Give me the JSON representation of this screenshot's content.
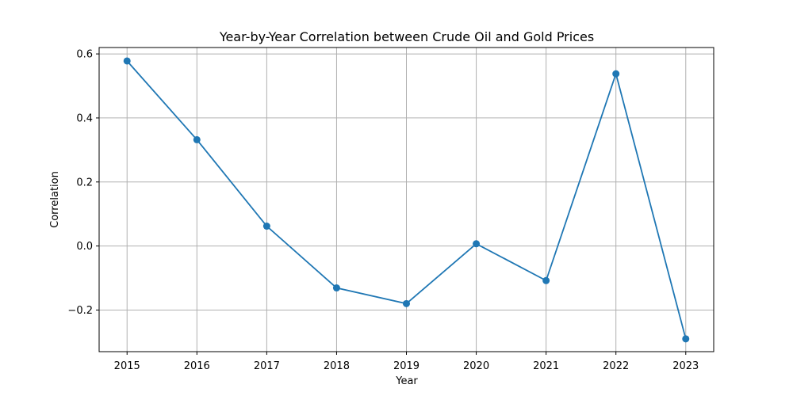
{
  "chart_data": {
    "type": "line",
    "title": "Year-by-Year Correlation between Crude Oil and Gold Prices",
    "xlabel": "Year",
    "ylabel": "Correlation",
    "x": [
      2015,
      2016,
      2017,
      2018,
      2019,
      2020,
      2021,
      2022,
      2023
    ],
    "series": [
      {
        "values": [
          0.578,
          0.332,
          0.062,
          -0.131,
          -0.18,
          0.007,
          -0.108,
          0.538,
          -0.29
        ],
        "color": "#1f77b4",
        "marker": "circle"
      }
    ],
    "xlim": [
      2014.6,
      2023.4
    ],
    "ylim": [
      -0.33,
      0.62
    ],
    "yticks": [
      -0.2,
      0.0,
      0.2,
      0.4,
      0.6
    ],
    "ytick_labels": [
      "−0.2",
      "0.0",
      "0.2",
      "0.4",
      "0.6"
    ],
    "xticks": [
      2015,
      2016,
      2017,
      2018,
      2019,
      2020,
      2021,
      2022,
      2023
    ],
    "xtick_labels": [
      "2015",
      "2016",
      "2017",
      "2018",
      "2019",
      "2020",
      "2021",
      "2022",
      "2023"
    ],
    "grid": true,
    "legend": "none"
  }
}
